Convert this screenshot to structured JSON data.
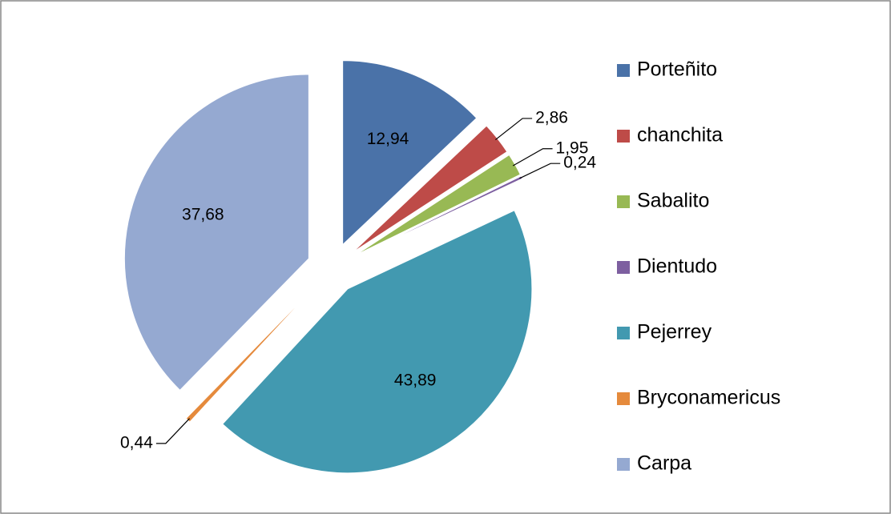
{
  "chart_data": {
    "type": "pie",
    "categories": [
      "Porteñito",
      "chanchita",
      "Sabalito",
      "Dientudo",
      "Pejerrey",
      "Bryconamericus",
      "Carpa"
    ],
    "values": [
      12.94,
      2.86,
      1.95,
      0.24,
      43.89,
      0.44,
      37.68
    ],
    "value_labels": [
      "12,94",
      "2,86",
      "1,95",
      "0,24",
      "43,89",
      "0,44",
      "37,68"
    ],
    "colors": [
      "#4a72a8",
      "#be4b48",
      "#98b954",
      "#7d5fa0",
      "#4299b0",
      "#e58a3c",
      "#95a9d1"
    ],
    "legend": "right"
  }
}
